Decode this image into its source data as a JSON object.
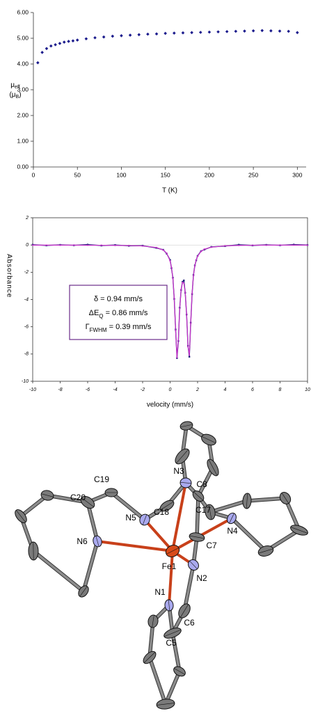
{
  "chart_data": [
    {
      "type": "scatter",
      "xlabel": "T (K)",
      "ylabel": [
        "μ",
        "eff"
      ],
      "yunit": [
        "(μ",
        "B",
        ")"
      ],
      "xlim": [
        0,
        310
      ],
      "xticks": [
        0,
        50,
        100,
        150,
        200,
        250,
        300
      ],
      "ylim": [
        0,
        6
      ],
      "yticks": [
        {
          "value": 0,
          "label": "0.00"
        },
        {
          "value": 1,
          "label": "1.00"
        },
        {
          "value": 2,
          "label": "2.00"
        },
        {
          "value": 3,
          "label": "3.00"
        },
        {
          "value": 4,
          "label": "4.00"
        },
        {
          "value": 5,
          "label": "5.00"
        },
        {
          "value": 6,
          "label": "6.00"
        }
      ],
      "color": "#1a1a8c",
      "x": [
        5,
        10,
        15,
        20,
        25,
        30,
        35,
        40,
        45,
        50,
        60,
        70,
        80,
        90,
        100,
        110,
        120,
        130,
        140,
        150,
        160,
        170,
        180,
        190,
        200,
        210,
        220,
        230,
        240,
        250,
        260,
        270,
        280,
        290,
        300
      ],
      "y": [
        4.05,
        4.45,
        4.6,
        4.7,
        4.75,
        4.8,
        4.85,
        4.88,
        4.9,
        4.93,
        4.98,
        5.02,
        5.05,
        5.08,
        5.1,
        5.12,
        5.14,
        5.16,
        5.17,
        5.19,
        5.2,
        5.21,
        5.22,
        5.23,
        5.24,
        5.25,
        5.26,
        5.27,
        5.28,
        5.29,
        5.3,
        5.29,
        5.28,
        5.27,
        5.22
      ]
    },
    {
      "type": "line",
      "xlabel": "velocity (mm/s)",
      "ylabel": "Absorbance",
      "xlim": [
        -10,
        10
      ],
      "xticks": [
        -10,
        -8,
        -6,
        -4,
        -2,
        0,
        2,
        4,
        6,
        8,
        10
      ],
      "ylim": [
        -10,
        2
      ],
      "yticks": [
        -10,
        -8,
        -6,
        -4,
        -2,
        0,
        2
      ],
      "annotations": [
        {
          "main": "δ = 0.94 mm/s"
        },
        {
          "main": "ΔE",
          "sub": "Q",
          "rest": " = 0.86 mm/s"
        },
        {
          "main": "Γ",
          "sub": "FWHM",
          "rest": " = 0.39 mm/s"
        }
      ],
      "x": [
        -10,
        -9,
        -8,
        -7,
        -6,
        -5,
        -4,
        -3,
        -2,
        -1,
        -0.5,
        -0.25,
        0,
        0.1,
        0.2,
        0.3,
        0.4,
        0.5,
        0.6,
        0.7,
        0.8,
        0.9,
        1.0,
        1.1,
        1.2,
        1.3,
        1.4,
        1.5,
        1.6,
        1.7,
        1.8,
        1.9,
        2.0,
        2.25,
        2.5,
        3,
        4,
        5,
        6,
        7,
        8,
        9,
        10
      ],
      "series": [
        {
          "color": "#1f1f7a",
          "style": "points",
          "values": [
            0.02,
            -0.03,
            0.01,
            -0.02,
            0.03,
            -0.04,
            0.0,
            -0.06,
            -0.05,
            -0.21,
            -0.35,
            -0.63,
            -1.1,
            -1.7,
            -2.4,
            -3.95,
            -6.2,
            -8.3,
            -7.05,
            -4.6,
            -3.3,
            -2.7,
            -2.6,
            -3.5,
            -5.1,
            -7.4,
            -8.2,
            -5.7,
            -3.6,
            -2.2,
            -1.5,
            -1.12,
            -0.8,
            -0.45,
            -0.33,
            -0.14,
            -0.08,
            0.02,
            -0.03,
            0.01,
            -0.02,
            0.03,
            0.0
          ]
        },
        {
          "color": "#cc33cc",
          "style": "line",
          "values": [
            -0.01,
            -0.01,
            -0.01,
            -0.01,
            -0.02,
            -0.02,
            -0.03,
            -0.04,
            -0.07,
            -0.18,
            -0.37,
            -0.6,
            -1.17,
            -1.64,
            -2.45,
            -3.91,
            -6.3,
            -8.26,
            -6.98,
            -4.67,
            -3.29,
            -2.74,
            -2.8,
            -3.48,
            -5.07,
            -7.45,
            -8.08,
            -5.76,
            -3.55,
            -2.25,
            -1.52,
            -1.09,
            -0.82,
            -0.47,
            -0.3,
            -0.16,
            -0.06,
            -0.03,
            -0.02,
            -0.01,
            -0.01,
            -0.01,
            -0.01
          ]
        }
      ]
    }
  ],
  "structure": {
    "atom_labels": [
      "C19",
      "C20",
      "N6",
      "N5",
      "C18",
      "N3",
      "C8",
      "C17",
      "N4",
      "Fe1",
      "C7",
      "N2",
      "N1",
      "C6",
      "C5"
    ]
  }
}
